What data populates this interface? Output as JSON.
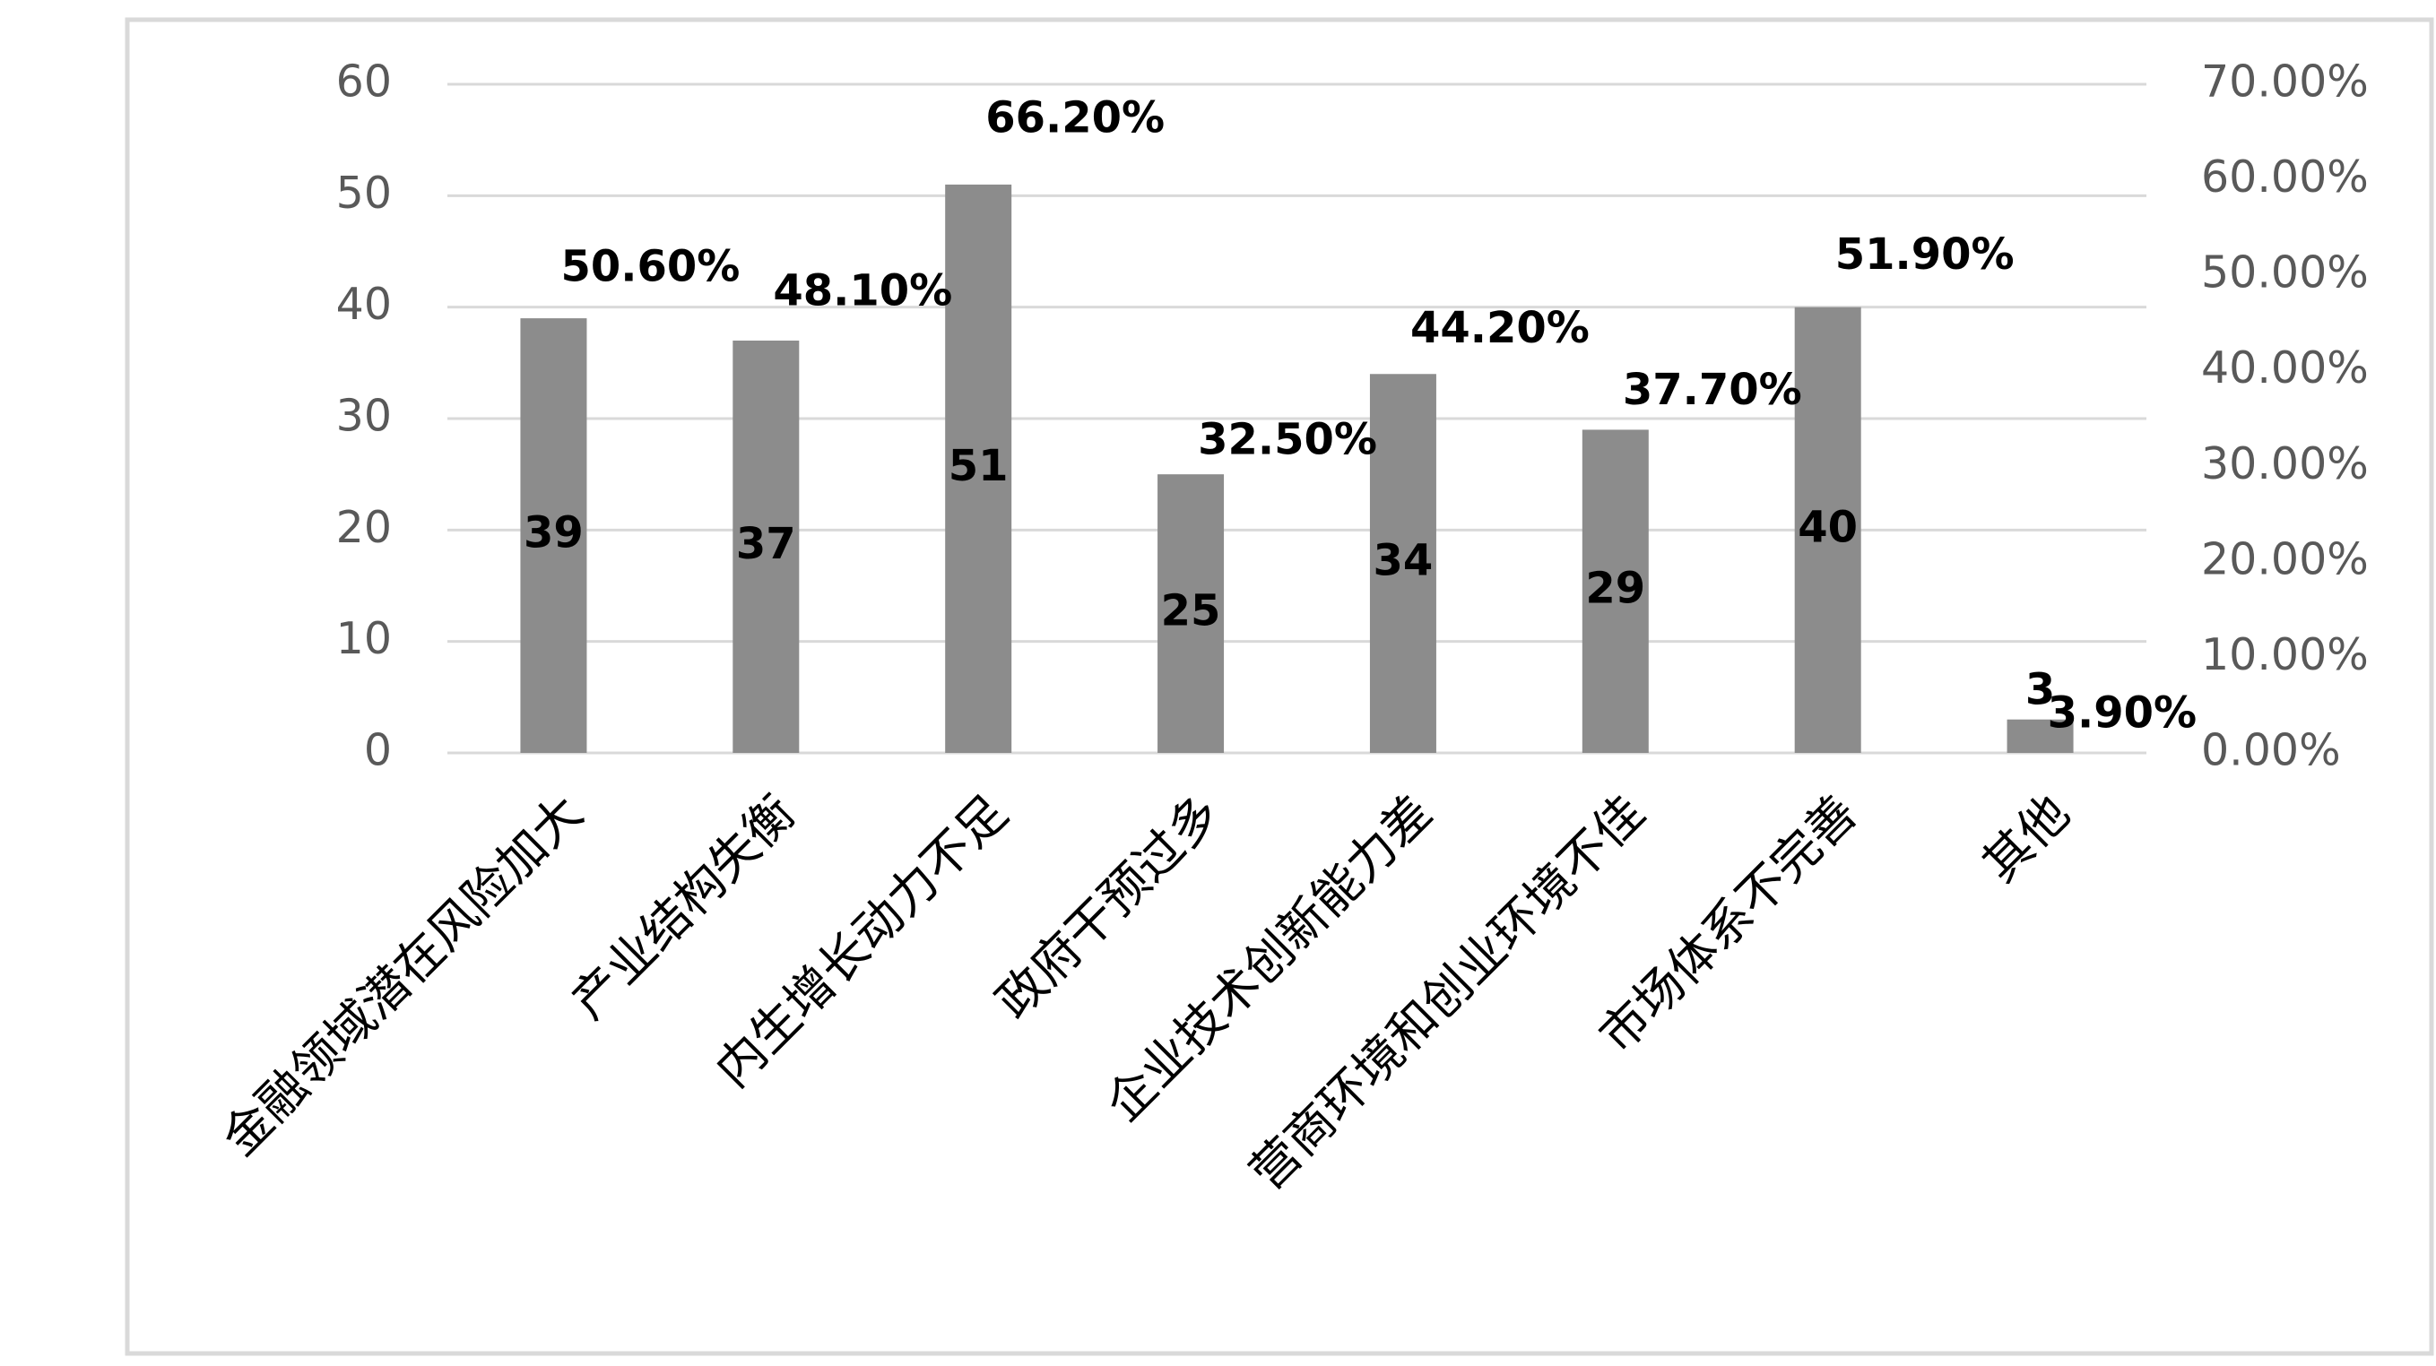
{
  "chart_data": {
    "type": "bar",
    "categories": [
      "金融领域潜在风险加大",
      "产业结构失衡",
      "内生增长动力不足",
      "政府干预过多",
      "企业技术创新能力差",
      "营商环境和创业环境不佳",
      "市场体系不完善",
      "其他"
    ],
    "series": [
      {
        "color": "#8c8c8c",
        "values": [
          39,
          37,
          51,
          25,
          34,
          29,
          40,
          3
        ]
      },
      {
        "axis": "y2",
        "values": [
          50.6,
          48.1,
          66.2,
          32.5,
          44.2,
          37.7,
          51.9,
          3.9
        ],
        "value_labels": [
          "50.60%",
          "48.10%",
          "66.20%",
          "32.50%",
          "44.20%",
          "37.70%",
          "51.90%",
          "3.90%"
        ]
      }
    ],
    "ylim": [
      0,
      60
    ],
    "yticks": [
      0,
      10,
      20,
      30,
      40,
      50,
      60
    ],
    "y2lim": [
      0,
      70
    ],
    "y2ticks": [
      {
        "value": 0,
        "label": "0.00%"
      },
      {
        "value": 10,
        "label": "10.00%"
      },
      {
        "value": 20,
        "label": "20.00%"
      },
      {
        "value": 30,
        "label": "30.00%"
      },
      {
        "value": 40,
        "label": "40.00%"
      },
      {
        "value": 50,
        "label": "50.00%"
      },
      {
        "value": 60,
        "label": "60.00%"
      },
      {
        "value": 70,
        "label": "70.00%"
      }
    ],
    "grid": true
  }
}
